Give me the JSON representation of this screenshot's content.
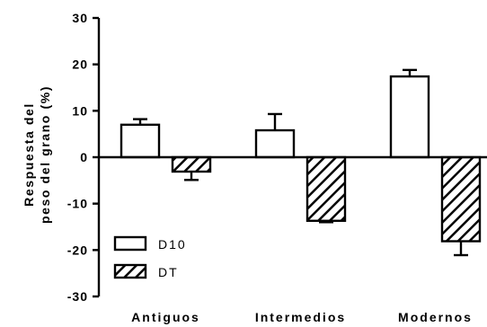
{
  "chart_data": {
    "type": "bar",
    "ylabel_lines": [
      "Respuesta del",
      "peso del grano (%)"
    ],
    "categories": [
      "Antiguos",
      "Intermedios",
      "Modernos"
    ],
    "ylim": [
      -30,
      30
    ],
    "yticks": [
      30,
      20,
      10,
      0,
      -10,
      -20,
      -30
    ],
    "series": [
      {
        "name": "D10",
        "pattern": "open",
        "values": [
          7,
          5.8,
          17.4
        ],
        "errors": [
          1.2,
          3.5,
          1.4
        ]
      },
      {
        "name": "DT",
        "pattern": "hatched",
        "values": [
          -3.1,
          -13.7,
          -18.1
        ],
        "errors": [
          1.8,
          0.3,
          3.0
        ]
      }
    ],
    "legend": {
      "placement": "bottom-left",
      "entries": [
        "D10",
        "DT"
      ]
    },
    "grid": false,
    "colors": {
      "open_fill": "#ffffff",
      "hatch_stroke": "#000000",
      "outline": "#000000"
    }
  }
}
